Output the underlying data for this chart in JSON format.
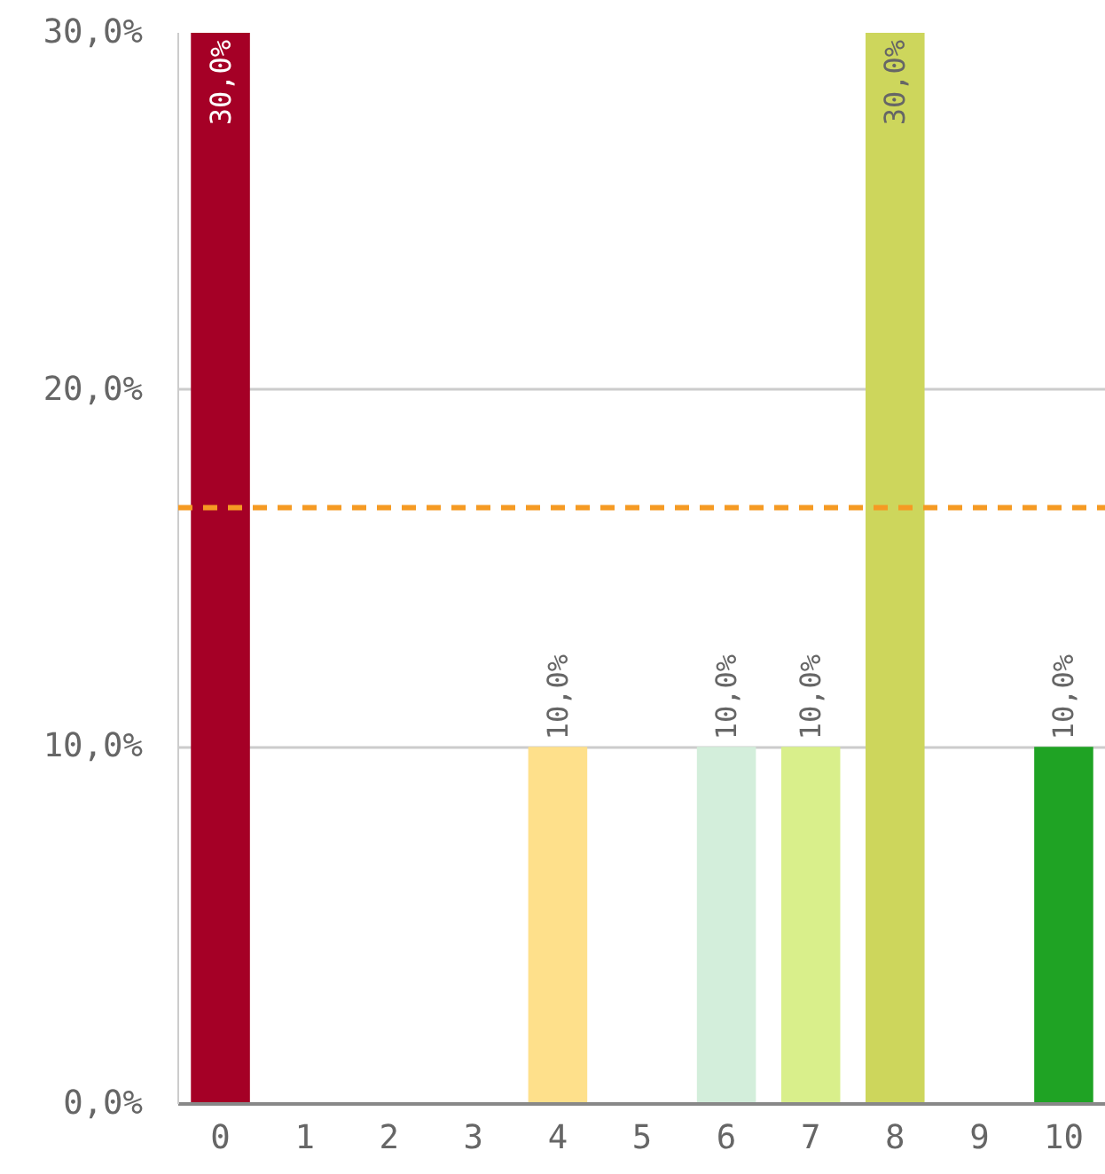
{
  "chart_data": {
    "type": "bar",
    "categories": [
      "0",
      "1",
      "2",
      "3",
      "4",
      "5",
      "6",
      "7",
      "8",
      "9",
      "10"
    ],
    "values": [
      30,
      0,
      0,
      0,
      10,
      0,
      10,
      10,
      30,
      0,
      10
    ],
    "colors": [
      "#a50026",
      null,
      null,
      null,
      "#fee08b",
      null,
      "#d3eedb",
      "#d9ef8b",
      "#cdd65c",
      null,
      "#1fa324"
    ],
    "value_labels": [
      "30,0%",
      null,
      null,
      null,
      "10,0%",
      null,
      "10,0%",
      "10,0%",
      "30,0%",
      null,
      "10,0%"
    ],
    "ylim": [
      0,
      30
    ],
    "yticks": [
      {
        "value": 0,
        "label": "0,0%"
      },
      {
        "value": 10,
        "label": "10,0%"
      },
      {
        "value": 20,
        "label": "20,0%"
      },
      {
        "value": 30,
        "label": "30,0%"
      }
    ],
    "ref_lines": [
      {
        "axis": "y",
        "value": 16.7,
        "color": "#f59a23",
        "line_style": "dashed"
      }
    ],
    "grid": "y"
  }
}
